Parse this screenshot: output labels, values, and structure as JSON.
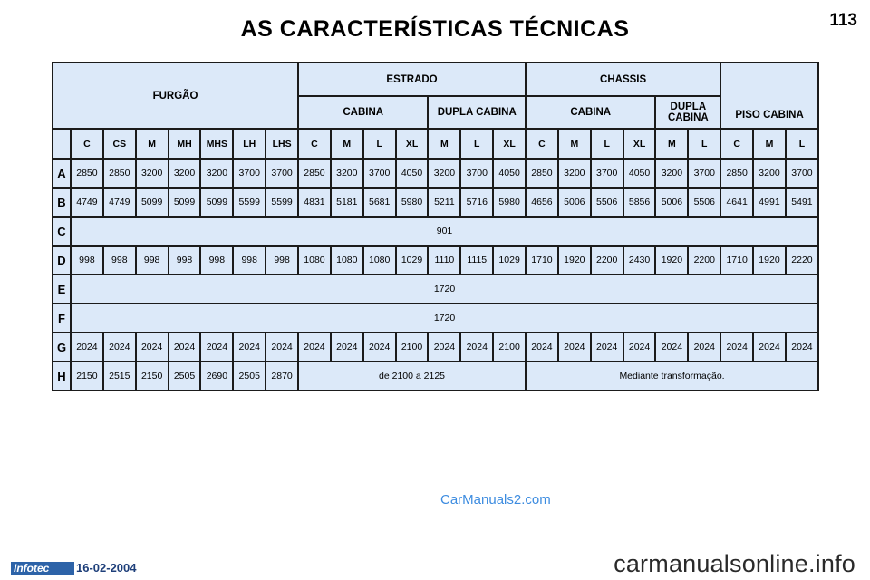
{
  "page": {
    "title": "AS CARACTERÍSTICAS TÉCNICAS",
    "page_number": "113"
  },
  "table": {
    "group_headers": {
      "furgao": "FURGÃO",
      "estrado": "ESTRADO",
      "chassis": "CHASSIS",
      "piso_cabina": "PISO CABINA"
    },
    "sub_headers": {
      "estrado_cabina": "CABINA",
      "estrado_dupla": "DUPLA CABINA",
      "chassis_cabina": "CABINA",
      "chassis_dupla": "DUPLA CABINA"
    },
    "columns": [
      "C",
      "CS",
      "M",
      "MH",
      "MHS",
      "LH",
      "LHS",
      "C",
      "M",
      "L",
      "XL",
      "M",
      "L",
      "XL",
      "C",
      "M",
      "L",
      "XL",
      "M",
      "L",
      "C",
      "M",
      "L"
    ],
    "rows": [
      {
        "label": "A",
        "values": [
          "2850",
          "2850",
          "3200",
          "3200",
          "3200",
          "3700",
          "3700",
          "2850",
          "3200",
          "3700",
          "4050",
          "3200",
          "3700",
          "4050",
          "2850",
          "3200",
          "3700",
          "4050",
          "3200",
          "3700",
          "2850",
          "3200",
          "3700"
        ]
      },
      {
        "label": "B",
        "values": [
          "4749",
          "4749",
          "5099",
          "5099",
          "5099",
          "5599",
          "5599",
          "4831",
          "5181",
          "5681",
          "5980",
          "5211",
          "5716",
          "5980",
          "4656",
          "5006",
          "5506",
          "5856",
          "5006",
          "5506",
          "4641",
          "4991",
          "5491"
        ]
      },
      {
        "label": "C",
        "span_value": "901"
      },
      {
        "label": "D",
        "values": [
          "998",
          "998",
          "998",
          "998",
          "998",
          "998",
          "998",
          "1080",
          "1080",
          "1080",
          "1029",
          "1110",
          "1115",
          "1029",
          "1710",
          "1920",
          "2200",
          "2430",
          "1920",
          "2200",
          "1710",
          "1920",
          "2220"
        ]
      },
      {
        "label": "E",
        "span_value": "1720"
      },
      {
        "label": "F",
        "span_value": "1720"
      },
      {
        "label": "G",
        "values": [
          "2024",
          "2024",
          "2024",
          "2024",
          "2024",
          "2024",
          "2024",
          "2024",
          "2024",
          "2024",
          "2100",
          "2024",
          "2024",
          "2100",
          "2024",
          "2024",
          "2024",
          "2024",
          "2024",
          "2024",
          "2024",
          "2024",
          "2024"
        ]
      },
      {
        "label": "H",
        "values": [
          "2150",
          "2515",
          "2150",
          "2505",
          "2690",
          "2505",
          "2870"
        ],
        "estrado_note": "de 2100 a 2125",
        "chassis_note": "Mediante transformação."
      }
    ]
  },
  "watermark": "CarManuals2.com",
  "footer": {
    "logo_text": "Infotec",
    "date": "16-02-2004",
    "site": "carmanualsonline.info"
  },
  "colors": {
    "table_background": "#dce9f9",
    "border": "#1b1b1b",
    "watermark": "#3d8ce0",
    "logo_background": "#2d63a8"
  }
}
